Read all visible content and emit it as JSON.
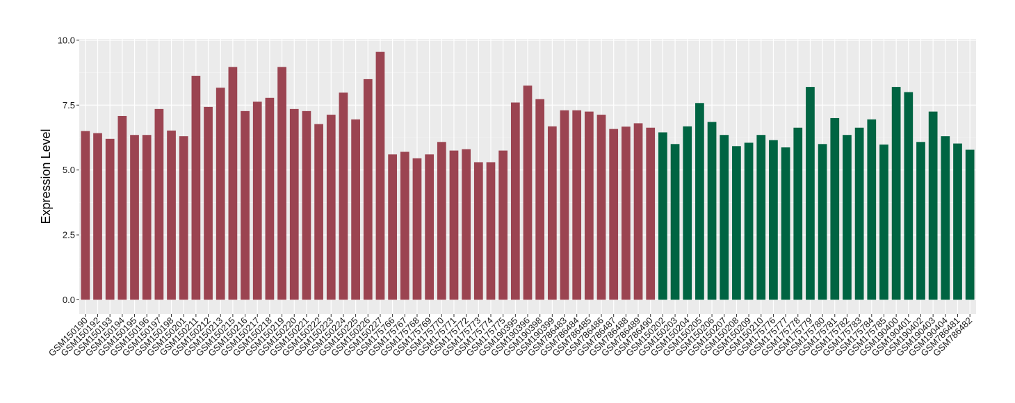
{
  "chart_data": {
    "type": "bar",
    "ylabel": "Expression Level",
    "xlabel": "",
    "ylim": [
      -0.55,
      10.05
    ],
    "yticks": [
      0.0,
      2.5,
      5.0,
      7.5,
      10.0
    ],
    "ytick_labels": [
      "0.0",
      "2.5",
      "5.0",
      "7.5",
      "10.0"
    ],
    "grid": true,
    "legend": "none",
    "group_colors": {
      "group1": "#9b4451",
      "group2": "#006442"
    },
    "panel_background": "#ebebeb",
    "categories": [
      "GSM150190",
      "GSM150192",
      "GSM150193",
      "GSM150194",
      "GSM150195",
      "GSM150196",
      "GSM150197",
      "GSM150198",
      "GSM150201",
      "GSM150211",
      "GSM150212",
      "GSM150213",
      "GSM150215",
      "GSM150216",
      "GSM150217",
      "GSM150218",
      "GSM150219",
      "GSM150220",
      "GSM150221",
      "GSM150222",
      "GSM150223",
      "GSM150224",
      "GSM150225",
      "GSM150226",
      "GSM150227",
      "GSM175766",
      "GSM175767",
      "GSM175768",
      "GSM175769",
      "GSM175770",
      "GSM175771",
      "GSM175772",
      "GSM175773",
      "GSM175774",
      "GSM175775",
      "GSM190395",
      "GSM190396",
      "GSM190398",
      "GSM190399",
      "GSM786483",
      "GSM786484",
      "GSM786485",
      "GSM786486",
      "GSM786487",
      "GSM786488",
      "GSM786489",
      "GSM786490",
      "GSM150202",
      "GSM150203",
      "GSM150204",
      "GSM150205",
      "GSM150206",
      "GSM150207",
      "GSM150208",
      "GSM150209",
      "GSM150210",
      "GSM175776",
      "GSM175777",
      "GSM175778",
      "GSM175779",
      "GSM175780",
      "GSM175781",
      "GSM175782",
      "GSM175783",
      "GSM175784",
      "GSM175785",
      "GSM190400",
      "GSM190401",
      "GSM190402",
      "GSM190403",
      "GSM190404",
      "GSM786481",
      "GSM786482"
    ],
    "values": [
      6.5,
      6.42,
      6.2,
      7.08,
      6.35,
      6.35,
      7.35,
      6.52,
      6.3,
      8.63,
      7.43,
      8.17,
      8.97,
      7.27,
      7.63,
      7.78,
      8.97,
      7.35,
      7.27,
      6.77,
      7.13,
      7.98,
      6.95,
      8.5,
      9.55,
      5.6,
      5.7,
      5.45,
      5.6,
      6.08,
      5.75,
      5.8,
      5.3,
      5.3,
      5.75,
      7.6,
      8.25,
      7.73,
      6.68,
      7.3,
      7.3,
      7.25,
      7.13,
      6.58,
      6.67,
      6.8,
      6.63,
      6.45,
      6.0,
      6.68,
      7.58,
      6.85,
      6.35,
      5.92,
      6.05,
      6.35,
      6.15,
      5.87,
      6.63,
      8.2,
      6.0,
      7.0,
      6.35,
      6.63,
      6.95,
      5.98,
      8.2,
      8.0,
      6.08,
      7.25,
      6.3,
      6.02,
      5.78
    ],
    "group": [
      1,
      1,
      1,
      1,
      1,
      1,
      1,
      1,
      1,
      1,
      1,
      1,
      1,
      1,
      1,
      1,
      1,
      1,
      1,
      1,
      1,
      1,
      1,
      1,
      1,
      1,
      1,
      1,
      1,
      1,
      1,
      1,
      1,
      1,
      1,
      1,
      1,
      1,
      1,
      1,
      1,
      1,
      1,
      1,
      1,
      1,
      1,
      2,
      2,
      2,
      2,
      2,
      2,
      2,
      2,
      2,
      2,
      2,
      2,
      2,
      2,
      2,
      2,
      2,
      2,
      2,
      2,
      2,
      2,
      2,
      2,
      2,
      2
    ]
  }
}
